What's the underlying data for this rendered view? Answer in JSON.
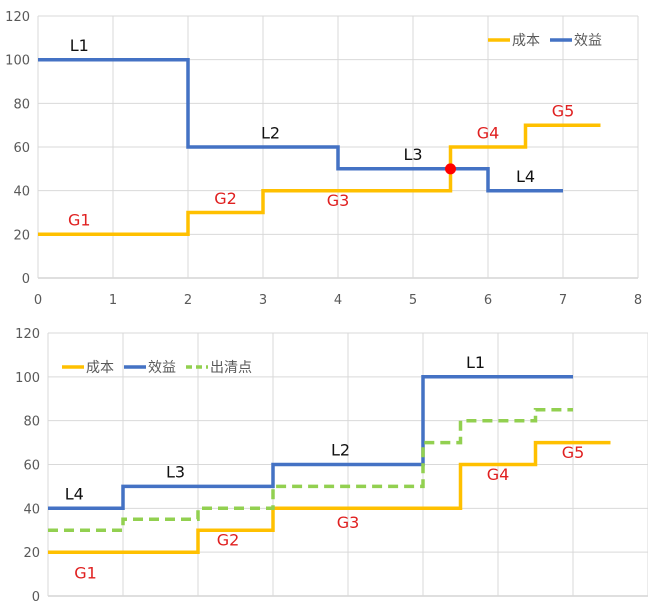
{
  "colors": {
    "cost": "#FFC000",
    "benefit": "#4472C4",
    "clearing": "#92D050",
    "label_red": "#E02020",
    "label_black": "#111111",
    "grid": "#D9D9D9",
    "axis": "#BFBFBF",
    "point": "#FF0000"
  },
  "chart_data": [
    {
      "type": "line",
      "step": true,
      "title": "",
      "xlabel": "",
      "ylabel": "",
      "xlim": [
        0,
        8
      ],
      "ylim": [
        0,
        120
      ],
      "xticks": [
        "0",
        "1",
        "2",
        "3",
        "4",
        "5",
        "6",
        "7",
        "8"
      ],
      "yticks": [
        "0",
        "20",
        "40",
        "60",
        "80",
        "100",
        "120"
      ],
      "grid": true,
      "legend": "top-right",
      "series": [
        {
          "name": "成本",
          "color_key": "cost",
          "dashed": false,
          "x": [
            0,
            2,
            2,
            3,
            3,
            5.5,
            5.5,
            6.5,
            6.5,
            7.5
          ],
          "y": [
            20,
            20,
            30,
            30,
            40,
            40,
            60,
            60,
            70,
            70
          ]
        },
        {
          "name": "效益",
          "color_key": "benefit",
          "dashed": false,
          "x": [
            0,
            2,
            2,
            4,
            4,
            6,
            6,
            7
          ],
          "y": [
            100,
            100,
            60,
            60,
            50,
            50,
            40,
            40
          ]
        }
      ],
      "points": [
        {
          "x": 5.5,
          "y": 50,
          "color_key": "point"
        }
      ],
      "annotations": [
        {
          "text": "L1",
          "x": 0.55,
          "y": 104,
          "color_key": "label_black"
        },
        {
          "text": "L2",
          "x": 3.1,
          "y": 64,
          "color_key": "label_black"
        },
        {
          "text": "L3",
          "x": 5.0,
          "y": 54,
          "color_key": "label_black"
        },
        {
          "text": "L4",
          "x": 6.5,
          "y": 44,
          "color_key": "label_black"
        },
        {
          "text": "G1",
          "x": 0.55,
          "y": 24,
          "color_key": "label_red"
        },
        {
          "text": "G2",
          "x": 2.5,
          "y": 34,
          "color_key": "label_red"
        },
        {
          "text": "G3",
          "x": 4.0,
          "y": 33,
          "color_key": "label_red"
        },
        {
          "text": "G4",
          "x": 6.0,
          "y": 64,
          "color_key": "label_red"
        },
        {
          "text": "G5",
          "x": 7.0,
          "y": 74,
          "color_key": "label_red"
        }
      ]
    },
    {
      "type": "line",
      "step": true,
      "title": "",
      "xlabel": "",
      "ylabel": "",
      "xlim": [
        0,
        8
      ],
      "ylim": [
        0,
        120
      ],
      "yticks": [
        "0",
        "20",
        "40",
        "60",
        "80",
        "100",
        "120"
      ],
      "grid": true,
      "legend": "top-left",
      "series": [
        {
          "name": "成本",
          "color_key": "cost",
          "dashed": false,
          "x": [
            0,
            2,
            2,
            3,
            3,
            5.5,
            5.5,
            6.5,
            6.5,
            7.5
          ],
          "y": [
            20,
            20,
            30,
            30,
            40,
            40,
            60,
            60,
            70,
            70
          ]
        },
        {
          "name": "效益",
          "color_key": "benefit",
          "dashed": false,
          "x": [
            0,
            1,
            1,
            3,
            3,
            5,
            5,
            7
          ],
          "y": [
            40,
            40,
            50,
            50,
            60,
            60,
            100,
            100
          ]
        },
        {
          "name": "出清点",
          "color_key": "clearing",
          "dashed": true,
          "x": [
            0,
            1,
            1,
            2,
            2,
            3,
            3,
            5,
            5,
            5.5,
            5.5,
            6.5,
            6.5,
            7
          ],
          "y": [
            30,
            30,
            35,
            35,
            40,
            40,
            50,
            50,
            70,
            70,
            80,
            80,
            85,
            85
          ]
        }
      ],
      "annotations": [
        {
          "text": "L1",
          "x": 5.7,
          "y": 104,
          "color_key": "label_black"
        },
        {
          "text": "L2",
          "x": 3.9,
          "y": 64,
          "color_key": "label_black"
        },
        {
          "text": "L3",
          "x": 1.7,
          "y": 54,
          "color_key": "label_black"
        },
        {
          "text": "L4",
          "x": 0.35,
          "y": 44,
          "color_key": "label_black"
        },
        {
          "text": "G1",
          "x": 0.5,
          "y": 8,
          "color_key": "label_red"
        },
        {
          "text": "G2",
          "x": 2.4,
          "y": 23,
          "color_key": "label_red"
        },
        {
          "text": "G3",
          "x": 4.0,
          "y": 31,
          "color_key": "label_red"
        },
        {
          "text": "G4",
          "x": 6.0,
          "y": 53,
          "color_key": "label_red"
        },
        {
          "text": "G5",
          "x": 7.0,
          "y": 63,
          "color_key": "label_red"
        }
      ]
    }
  ]
}
